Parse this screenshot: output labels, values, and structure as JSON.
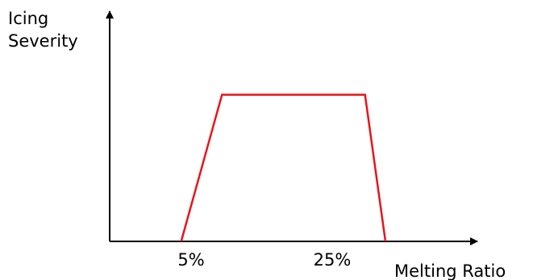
{
  "chart_data": {
    "type": "line",
    "title": "",
    "ylabel_lines": [
      "Icing",
      "Severity"
    ],
    "xlabel": "Melting Ratio",
    "x_tick_labels": [
      "5%",
      "25%"
    ],
    "series": [
      {
        "color": "#e8141b",
        "points": [
          {
            "x": 5,
            "y": 0
          },
          {
            "x": 9,
            "y": 1
          },
          {
            "x": 23,
            "y": 1
          },
          {
            "x": 25,
            "y": 0
          }
        ]
      }
    ],
    "x_ticks": [
      5,
      25
    ],
    "xlim": [
      -2,
      34
    ],
    "ylim": [
      0,
      1.57
    ],
    "y_ticks": [],
    "grid": false,
    "legend": "none",
    "axis_color": "#000000"
  }
}
